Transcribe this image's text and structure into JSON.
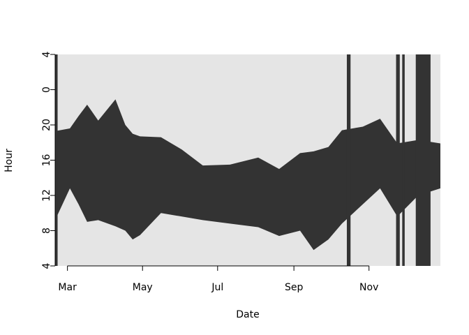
{
  "chart_data": {
    "type": "range-area",
    "xlabel": "Date",
    "ylabel": "Hour",
    "x": [
      50,
      62,
      69,
      76,
      85,
      99,
      107,
      113,
      119,
      136,
      153,
      170,
      192,
      215,
      232,
      249,
      260,
      272,
      283,
      300,
      314,
      328,
      345,
      363
    ],
    "series": [
      {
        "color": "#333333",
        "values": [
          9.2,
          12.8,
          11,
          9,
          9.2,
          8.5,
          8,
          7,
          7.5,
          10,
          9.6,
          9.2,
          8.8,
          8.4,
          7.4,
          8,
          5.8,
          7,
          8.8,
          11,
          12.8,
          9.6,
          12,
          12.8
        ]
      },
      {
        "color": "#333333",
        "values": [
          19.3,
          19.6,
          21,
          22.3,
          20.5,
          22.9,
          20,
          19,
          18.7,
          18.6,
          17.2,
          15.4,
          15.5,
          16.3,
          15,
          16.8,
          17,
          17.5,
          19.4,
          19.8,
          20.7,
          17.9,
          18.3,
          17.9
        ]
      }
    ],
    "full_dark_spans": [
      [
        50,
        52
      ],
      [
        287,
        290
      ],
      [
        327,
        330
      ],
      [
        332,
        334
      ],
      [
        343,
        355
      ]
    ],
    "background": "#e5e5e5",
    "xlim": [
      50,
      363
    ],
    "xticks": [
      {
        "value": 60,
        "label": "Mar"
      },
      {
        "value": 121,
        "label": "May"
      },
      {
        "value": 182,
        "label": "Jul"
      },
      {
        "value": 244,
        "label": "Sep"
      },
      {
        "value": 305,
        "label": "Nov"
      }
    ],
    "ylim": [
      4,
      28
    ],
    "yticks": [
      4,
      8,
      12,
      16,
      20,
      {
        "value": 24,
        "label": "0"
      },
      {
        "value": 28,
        "label": "4"
      }
    ]
  }
}
